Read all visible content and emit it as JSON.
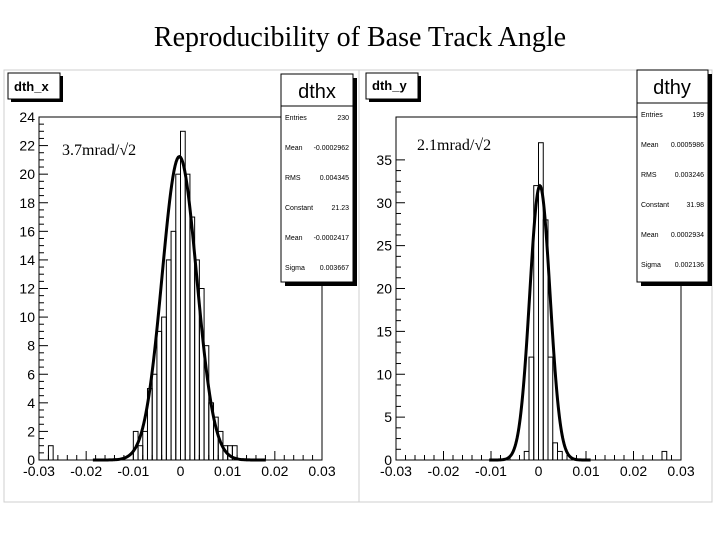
{
  "slide": {
    "title": "Reproducibility of Base Track Angle"
  },
  "chart_data": [
    {
      "type": "histogram",
      "hist_name": "dth_x",
      "xlim": [
        -0.03,
        0.03
      ],
      "ylim": [
        0,
        24
      ],
      "x_ticks": [
        "-0.03",
        "-0.02",
        "-0.01",
        "0",
        "0.01",
        "0.02",
        "0.03"
      ],
      "y_ticks": [
        "0",
        "2",
        "4",
        "6",
        "8",
        "10",
        "12",
        "14",
        "16",
        "18",
        "20",
        "22",
        "24"
      ],
      "annotation": "3.7mrad/√2",
      "bin_width": 0.001,
      "bin_start": -0.03,
      "counts": [
        0,
        0,
        1,
        0,
        0,
        0,
        0,
        0,
        0,
        0,
        0,
        0,
        0,
        0,
        0,
        0,
        0,
        0,
        0,
        0,
        2,
        1,
        2,
        5,
        6,
        9,
        10,
        14,
        16,
        20,
        23,
        20,
        17,
        14,
        12,
        8,
        4,
        3,
        2,
        1,
        1,
        1,
        0,
        0,
        0,
        0,
        0,
        0,
        0,
        0,
        0,
        0,
        0,
        0,
        0,
        0,
        0,
        0,
        0,
        0
      ],
      "stats": {
        "name": "dthx",
        "rows": [
          {
            "label": "Entries",
            "value": "230"
          },
          {
            "label": "Mean",
            "value": "-0.0002962"
          },
          {
            "label": "RMS",
            "value": "0.004345"
          },
          {
            "label": "Constant",
            "value": "21.23"
          },
          {
            "label": "Mean",
            "value": "-0.0002417"
          },
          {
            "label": "Sigma",
            "value": "0.003667"
          }
        ]
      },
      "fit": {
        "constant": 21.23,
        "mean": -0.0002417,
        "sigma": 0.003667
      }
    },
    {
      "type": "histogram",
      "hist_name": "dth_y",
      "xlim": [
        -0.03,
        0.03
      ],
      "ylim": [
        0,
        40
      ],
      "x_ticks": [
        "-0.03",
        "-0.02",
        "-0.01",
        "0",
        "0.01",
        "0.02",
        "0.03"
      ],
      "y_ticks": [
        "0",
        "5",
        "10",
        "15",
        "20",
        "25",
        "30",
        "35"
      ],
      "annotation": "2.1mrad/√2",
      "bin_width": 0.001,
      "bin_start": -0.03,
      "counts": [
        0,
        0,
        0,
        0,
        0,
        0,
        0,
        0,
        0,
        0,
        0,
        0,
        0,
        0,
        0,
        0,
        0,
        0,
        0,
        0,
        0,
        0,
        0,
        0,
        0,
        0,
        0,
        1,
        12,
        32,
        37,
        28,
        12,
        2,
        1,
        0,
        0,
        0,
        0,
        0,
        0,
        0,
        0,
        0,
        0,
        0,
        0,
        0,
        0,
        0,
        0,
        0,
        0,
        0,
        0,
        0,
        1,
        0,
        0,
        0
      ],
      "stats": {
        "name": "dthy",
        "rows": [
          {
            "label": "Entries",
            "value": "199"
          },
          {
            "label": "Mean",
            "value": "0.0005986"
          },
          {
            "label": "RMS",
            "value": "0.003246"
          },
          {
            "label": "Constant",
            "value": "31.98"
          },
          {
            "label": "Mean",
            "value": "0.0002934"
          },
          {
            "label": "Sigma",
            "value": "0.002136"
          }
        ]
      },
      "fit": {
        "constant": 31.98,
        "mean": 0.0002934,
        "sigma": 0.002136
      }
    }
  ]
}
